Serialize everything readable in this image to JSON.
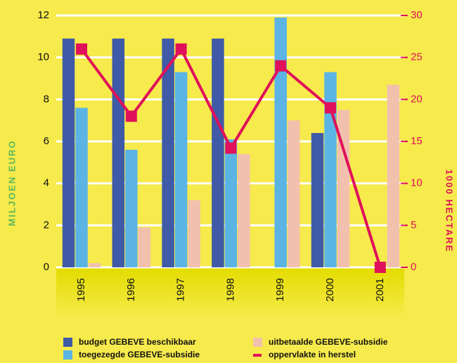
{
  "chart_data": {
    "type": "bar",
    "categories": [
      "1995",
      "1996",
      "1997",
      "1998",
      "1999",
      "2000",
      "2001"
    ],
    "series": [
      {
        "name": "budget GEBEVE beschikbaar",
        "color": "#3f5aa6",
        "values": [
          10.9,
          10.9,
          10.9,
          10.9,
          null,
          6.4,
          null
        ]
      },
      {
        "name": "toegezegde GEBEVE-subsidie",
        "color": "#5bb4e4",
        "values": [
          7.6,
          5.6,
          9.3,
          6.1,
          11.9,
          9.3,
          null
        ]
      },
      {
        "name": "uitbetaalde GEBEVE-subsidie",
        "color": "#f2c1ae",
        "values": [
          0.2,
          1.9,
          3.2,
          5.4,
          7.0,
          7.5,
          8.7
        ]
      },
      {
        "name": "oppervlakte in herstel",
        "color": "#e0105a",
        "type": "line",
        "axis": "y2",
        "values": [
          26,
          18,
          26,
          14.2,
          24,
          19,
          0
        ]
      }
    ],
    "ylabel": "MILJOEN EURO",
    "y2label": "1000 HECTARE",
    "ylim": [
      0,
      12
    ],
    "yticks": [
      0,
      2,
      4,
      6,
      8,
      10,
      12
    ],
    "y2lim": [
      0,
      30
    ],
    "y2ticks": [
      0,
      5,
      10,
      15,
      20,
      25,
      30
    ],
    "grid": true
  }
}
